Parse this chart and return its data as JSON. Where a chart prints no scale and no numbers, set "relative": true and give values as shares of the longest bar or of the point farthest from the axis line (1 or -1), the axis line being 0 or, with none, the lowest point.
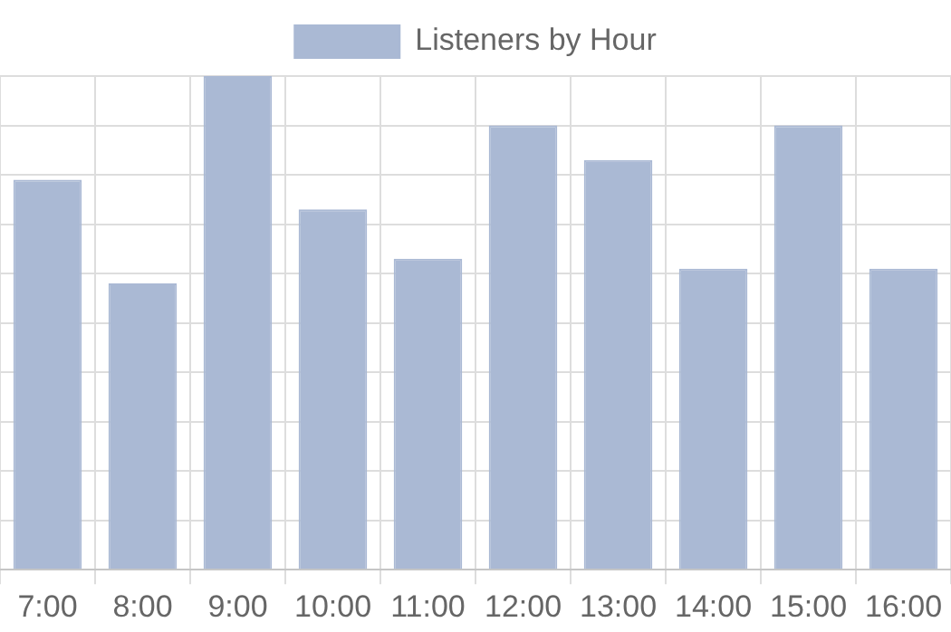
{
  "chart_data": {
    "type": "bar",
    "relative": true,
    "categories": [
      "7:00",
      "8:00",
      "9:00",
      "10:00",
      "11:00",
      "12:00",
      "13:00",
      "14:00",
      "15:00",
      "16:00"
    ],
    "series": [
      {
        "name": "Listeners by Hour",
        "color": "#aab9d4",
        "values": [
          0.79,
          0.58,
          1,
          0.73,
          0.63,
          0.9,
          0.83,
          0.61,
          0.9,
          0.61
        ]
      }
    ],
    "grid": true,
    "legend": "top"
  }
}
